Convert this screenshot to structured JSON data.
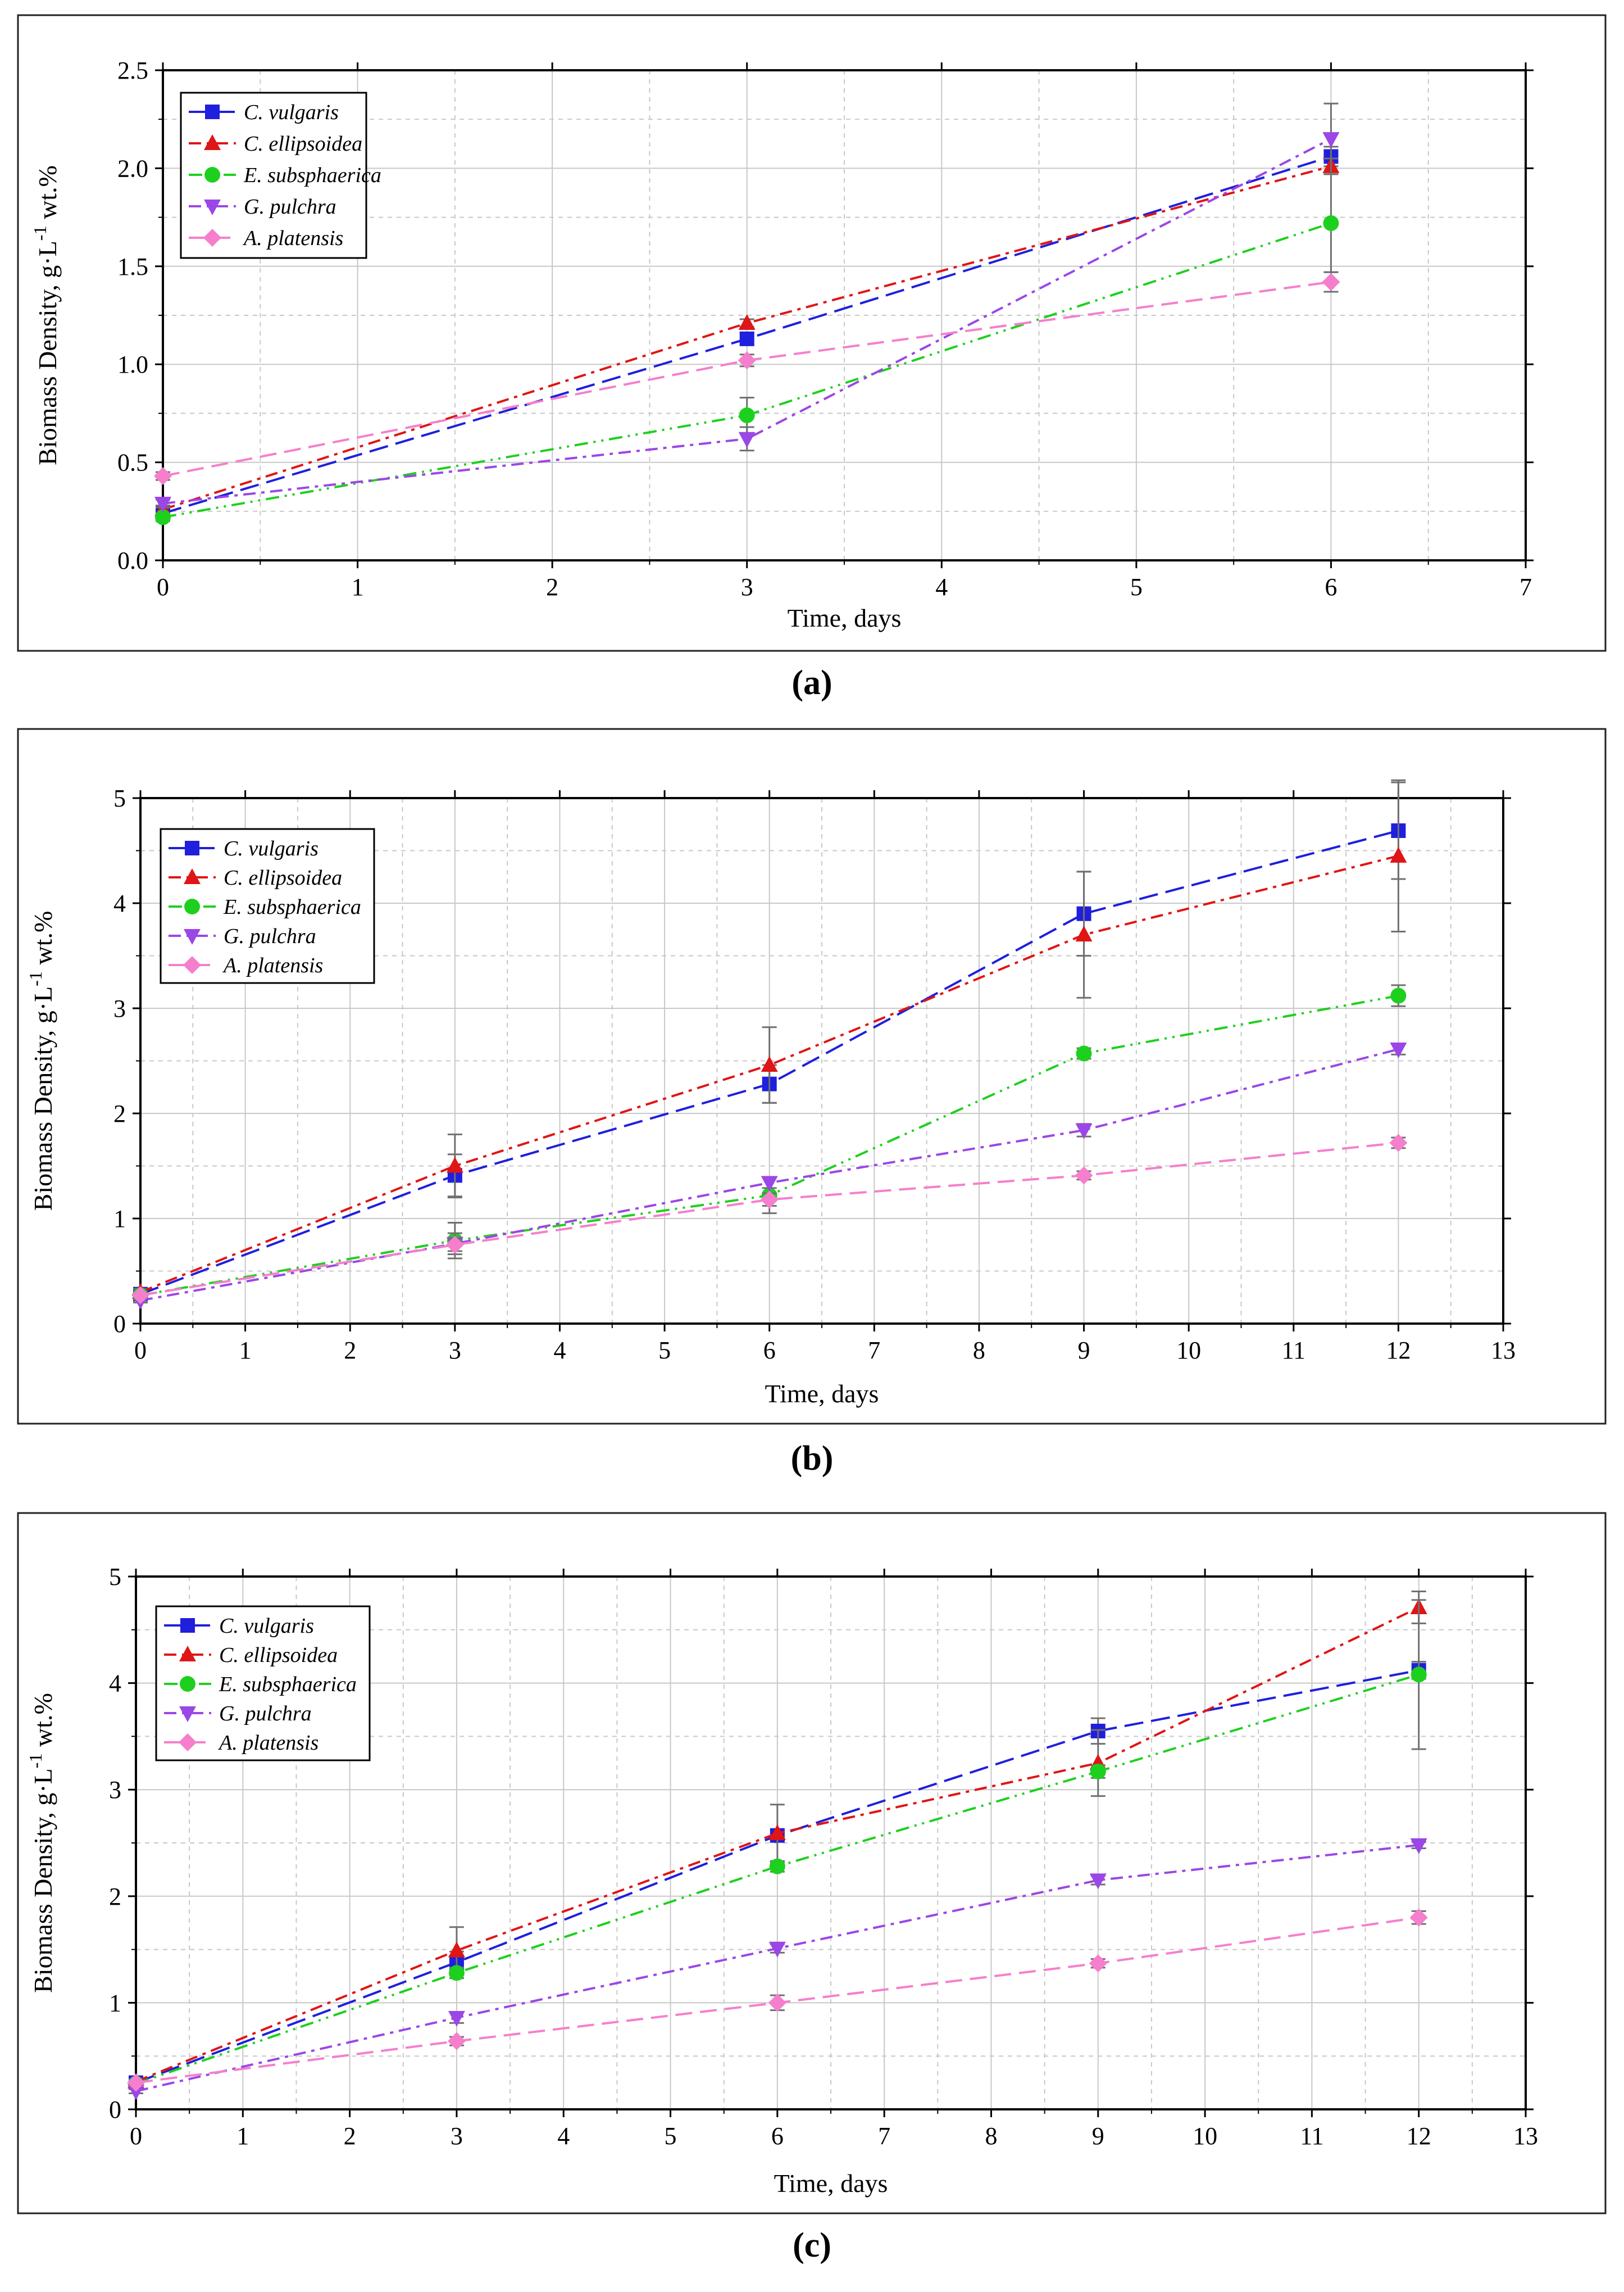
{
  "colors": {
    "series": [
      "#1f1fdd",
      "#e01515",
      "#1ed01e",
      "#9b46e6",
      "#f57fcc"
    ],
    "errorbar": "#707070",
    "grid": "#c8c8c8",
    "frame": "#000000"
  },
  "panel_labels": [
    "(a)",
    "(b)",
    "(c)"
  ],
  "chart_data": [
    {
      "type": "line",
      "panel": "(a)",
      "xlabel": "Time, days",
      "ylabel": "Biomass Density, g·L",
      "ylabel_sup": "-1",
      "ylabel_tail": " wt.%",
      "xlim": [
        0,
        7
      ],
      "ylim": [
        0,
        2.5
      ],
      "xticks": [
        0,
        1,
        2,
        3,
        4,
        5,
        6,
        7
      ],
      "yticks": [
        0.0,
        0.5,
        1.0,
        1.5,
        2.0,
        2.5
      ],
      "ytick_labels": [
        "0.0",
        "0.5",
        "1.0",
        "1.5",
        "2.0",
        "2.5"
      ],
      "legend_position": "top-left",
      "x": [
        0,
        3,
        6
      ],
      "series": [
        {
          "name": "C. vulgaris",
          "marker": "square",
          "values": [
            0.24,
            1.13,
            2.06
          ],
          "errors": [
            0.02,
            0.03,
            0.05
          ]
        },
        {
          "name": "C. ellipsoidea",
          "marker": "triangle-up",
          "values": [
            0.26,
            1.21,
            2.01
          ],
          "errors": [
            0.02,
            0.02,
            0.04
          ]
        },
        {
          "name": "E. subsphaerica",
          "marker": "circle",
          "values": [
            0.22,
            0.74,
            1.72
          ],
          "errors": [
            0.02,
            0.09,
            0.25
          ]
        },
        {
          "name": "G. pulchra",
          "marker": "triangle-down",
          "values": [
            0.29,
            0.62,
            2.15
          ],
          "errors": [
            0.02,
            0.06,
            0.18
          ]
        },
        {
          "name": "A. platensis",
          "marker": "diamond",
          "values": [
            0.43,
            1.02,
            1.42
          ],
          "errors": [
            0.02,
            0.03,
            0.05
          ]
        }
      ]
    },
    {
      "type": "line",
      "panel": "(b)",
      "xlabel": "Time, days",
      "ylabel": "Biomass Density, g·L",
      "ylabel_sup": "-1",
      "ylabel_tail": " wt.%",
      "xlim": [
        0,
        13
      ],
      "ylim": [
        0,
        5
      ],
      "xticks": [
        0,
        1,
        2,
        3,
        4,
        5,
        6,
        7,
        8,
        9,
        10,
        11,
        12,
        13
      ],
      "yticks": [
        0,
        1,
        2,
        3,
        4,
        5
      ],
      "ytick_labels": [
        "0",
        "1",
        "2",
        "3",
        "4",
        "5"
      ],
      "legend_position": "top-left",
      "x": [
        0,
        3,
        6,
        9,
        12
      ],
      "series": [
        {
          "name": "C. vulgaris",
          "marker": "square",
          "values": [
            0.28,
            1.41,
            2.28,
            3.9,
            4.69
          ],
          "errors": [
            0.03,
            0.2,
            0.18,
            0.4,
            0.46
          ]
        },
        {
          "name": "C. ellipsoidea",
          "marker": "triangle-up",
          "values": [
            0.3,
            1.5,
            2.46,
            3.7,
            4.45
          ],
          "errors": [
            0.03,
            0.3,
            0.36,
            0.6,
            0.72
          ]
        },
        {
          "name": "E. subsphaerica",
          "marker": "circle",
          "values": [
            0.27,
            0.79,
            1.22,
            2.57,
            3.12
          ],
          "errors": [
            0.03,
            0.17,
            0.17,
            0.05,
            0.1
          ]
        },
        {
          "name": "G. pulchra",
          "marker": "triangle-down",
          "values": [
            0.22,
            0.76,
            1.34,
            1.84,
            2.61
          ],
          "errors": [
            0.02,
            0.1,
            0.05,
            0.06,
            0.05
          ]
        },
        {
          "name": "A. platensis",
          "marker": "diamond",
          "values": [
            0.27,
            0.75,
            1.18,
            1.41,
            1.72
          ],
          "errors": [
            0.02,
            0.06,
            0.06,
            0.04,
            0.05
          ]
        }
      ]
    },
    {
      "type": "line",
      "panel": "(c)",
      "xlabel": "Time, days",
      "ylabel": "Biomass Density, g·L",
      "ylabel_sup": "-1",
      "ylabel_tail": " wt.%",
      "xlim": [
        0,
        13
      ],
      "ylim": [
        0,
        5
      ],
      "xticks": [
        0,
        1,
        2,
        3,
        4,
        5,
        6,
        7,
        8,
        9,
        10,
        11,
        12,
        13
      ],
      "yticks": [
        0,
        1,
        2,
        3,
        4,
        5
      ],
      "ytick_labels": [
        "0",
        "1",
        "2",
        "3",
        "4",
        "5"
      ],
      "legend_position": "top-left",
      "x": [
        0,
        3,
        6,
        9,
        12
      ],
      "series": [
        {
          "name": "C. vulgaris",
          "marker": "square",
          "values": [
            0.25,
            1.38,
            2.57,
            3.55,
            4.12
          ],
          "errors": [
            0.02,
            0.1,
            0.05,
            0.12,
            0.08
          ]
        },
        {
          "name": "C. ellipsoidea",
          "marker": "triangle-up",
          "values": [
            0.26,
            1.49,
            2.59,
            3.25,
            4.71
          ],
          "errors": [
            0.02,
            0.22,
            0.27,
            0.31,
            0.15
          ]
        },
        {
          "name": "E. subsphaerica",
          "marker": "circle",
          "values": [
            0.24,
            1.28,
            2.28,
            3.17,
            4.08
          ],
          "errors": [
            0.02,
            0.05,
            0.05,
            0.06,
            0.7
          ]
        },
        {
          "name": "G. pulchra",
          "marker": "triangle-down",
          "values": [
            0.17,
            0.86,
            1.51,
            2.15,
            2.48
          ],
          "errors": [
            0.02,
            0.05,
            0.04,
            0.04,
            0.03
          ]
        },
        {
          "name": "A. platensis",
          "marker": "diamond",
          "values": [
            0.25,
            0.64,
            1.0,
            1.37,
            1.8
          ],
          "errors": [
            0.02,
            0.04,
            0.07,
            0.04,
            0.06
          ]
        }
      ]
    }
  ]
}
